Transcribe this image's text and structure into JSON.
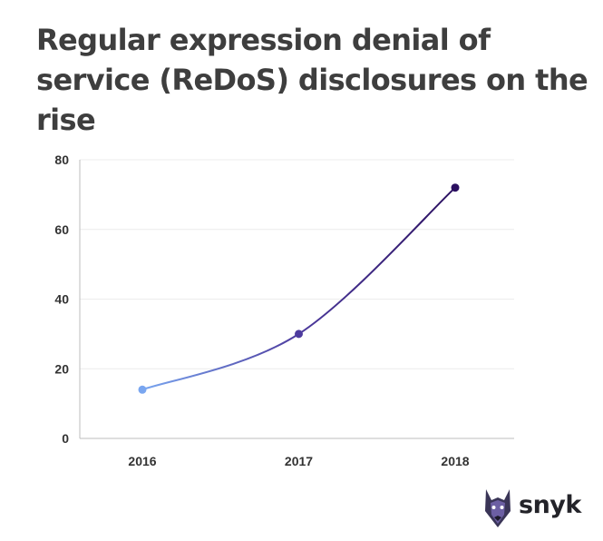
{
  "title": "Regular expression denial of service (ReDoS) disclosures on the rise",
  "brand": {
    "name": "snyk",
    "icon": "doberman-logo-icon"
  },
  "chart_data": {
    "type": "line",
    "categories": [
      "2016",
      "2017",
      "2018"
    ],
    "series": [
      {
        "values": [
          14,
          30,
          72
        ],
        "colors": [
          "#79a6f0",
          "#4d3b9e",
          "#2b1060"
        ]
      }
    ],
    "ylim": [
      0,
      80
    ],
    "yticks": [
      0,
      20,
      40,
      60,
      80
    ],
    "xlabel": "",
    "ylabel": "",
    "grid": true,
    "line_style": "smooth"
  }
}
